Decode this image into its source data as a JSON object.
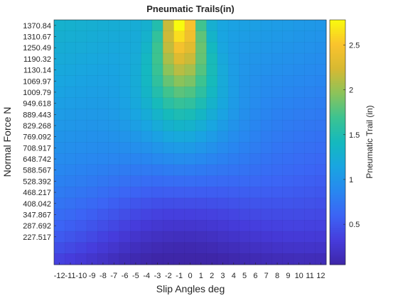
{
  "chart_data": {
    "type": "heatmap",
    "title": "Pneumatic Trails(in)",
    "xlabel": "Slip Angles deg",
    "ylabel": "Normal Force N",
    "x_categories": [
      "-12",
      "-11",
      "-10",
      "-9",
      "-8",
      "-7",
      "-6",
      "-5",
      "-4",
      "-3",
      "-2",
      "-1",
      "0",
      "1",
      "2",
      "3",
      "4",
      "5",
      "6",
      "7",
      "8",
      "9",
      "10",
      "11",
      "12"
    ],
    "y_tick_labels": [
      "1370.84",
      "1310.67",
      "1250.49",
      "1190.32",
      "1130.14",
      "1069.97",
      "1009.79",
      "949.618",
      "889.443",
      "829.268",
      "769.092",
      "708.917",
      "648.742",
      "588.567",
      "528.392",
      "468.217",
      "408.042",
      "347.867",
      "287.692",
      "227.517"
    ],
    "y_row_count": 22,
    "colorbar": {
      "label": "Pneumatic Trail (in)",
      "range": [
        0.05,
        2.78
      ],
      "ticks": [
        "0.5",
        "1",
        "1.5",
        "2",
        "2.5"
      ],
      "tick_values": [
        0.5,
        1,
        1.5,
        2,
        2.5
      ]
    },
    "colormap": "parula",
    "peak": {
      "slip_angle": -1,
      "normal_force": 1370.84,
      "value": 2.75
    },
    "grid": true
  }
}
